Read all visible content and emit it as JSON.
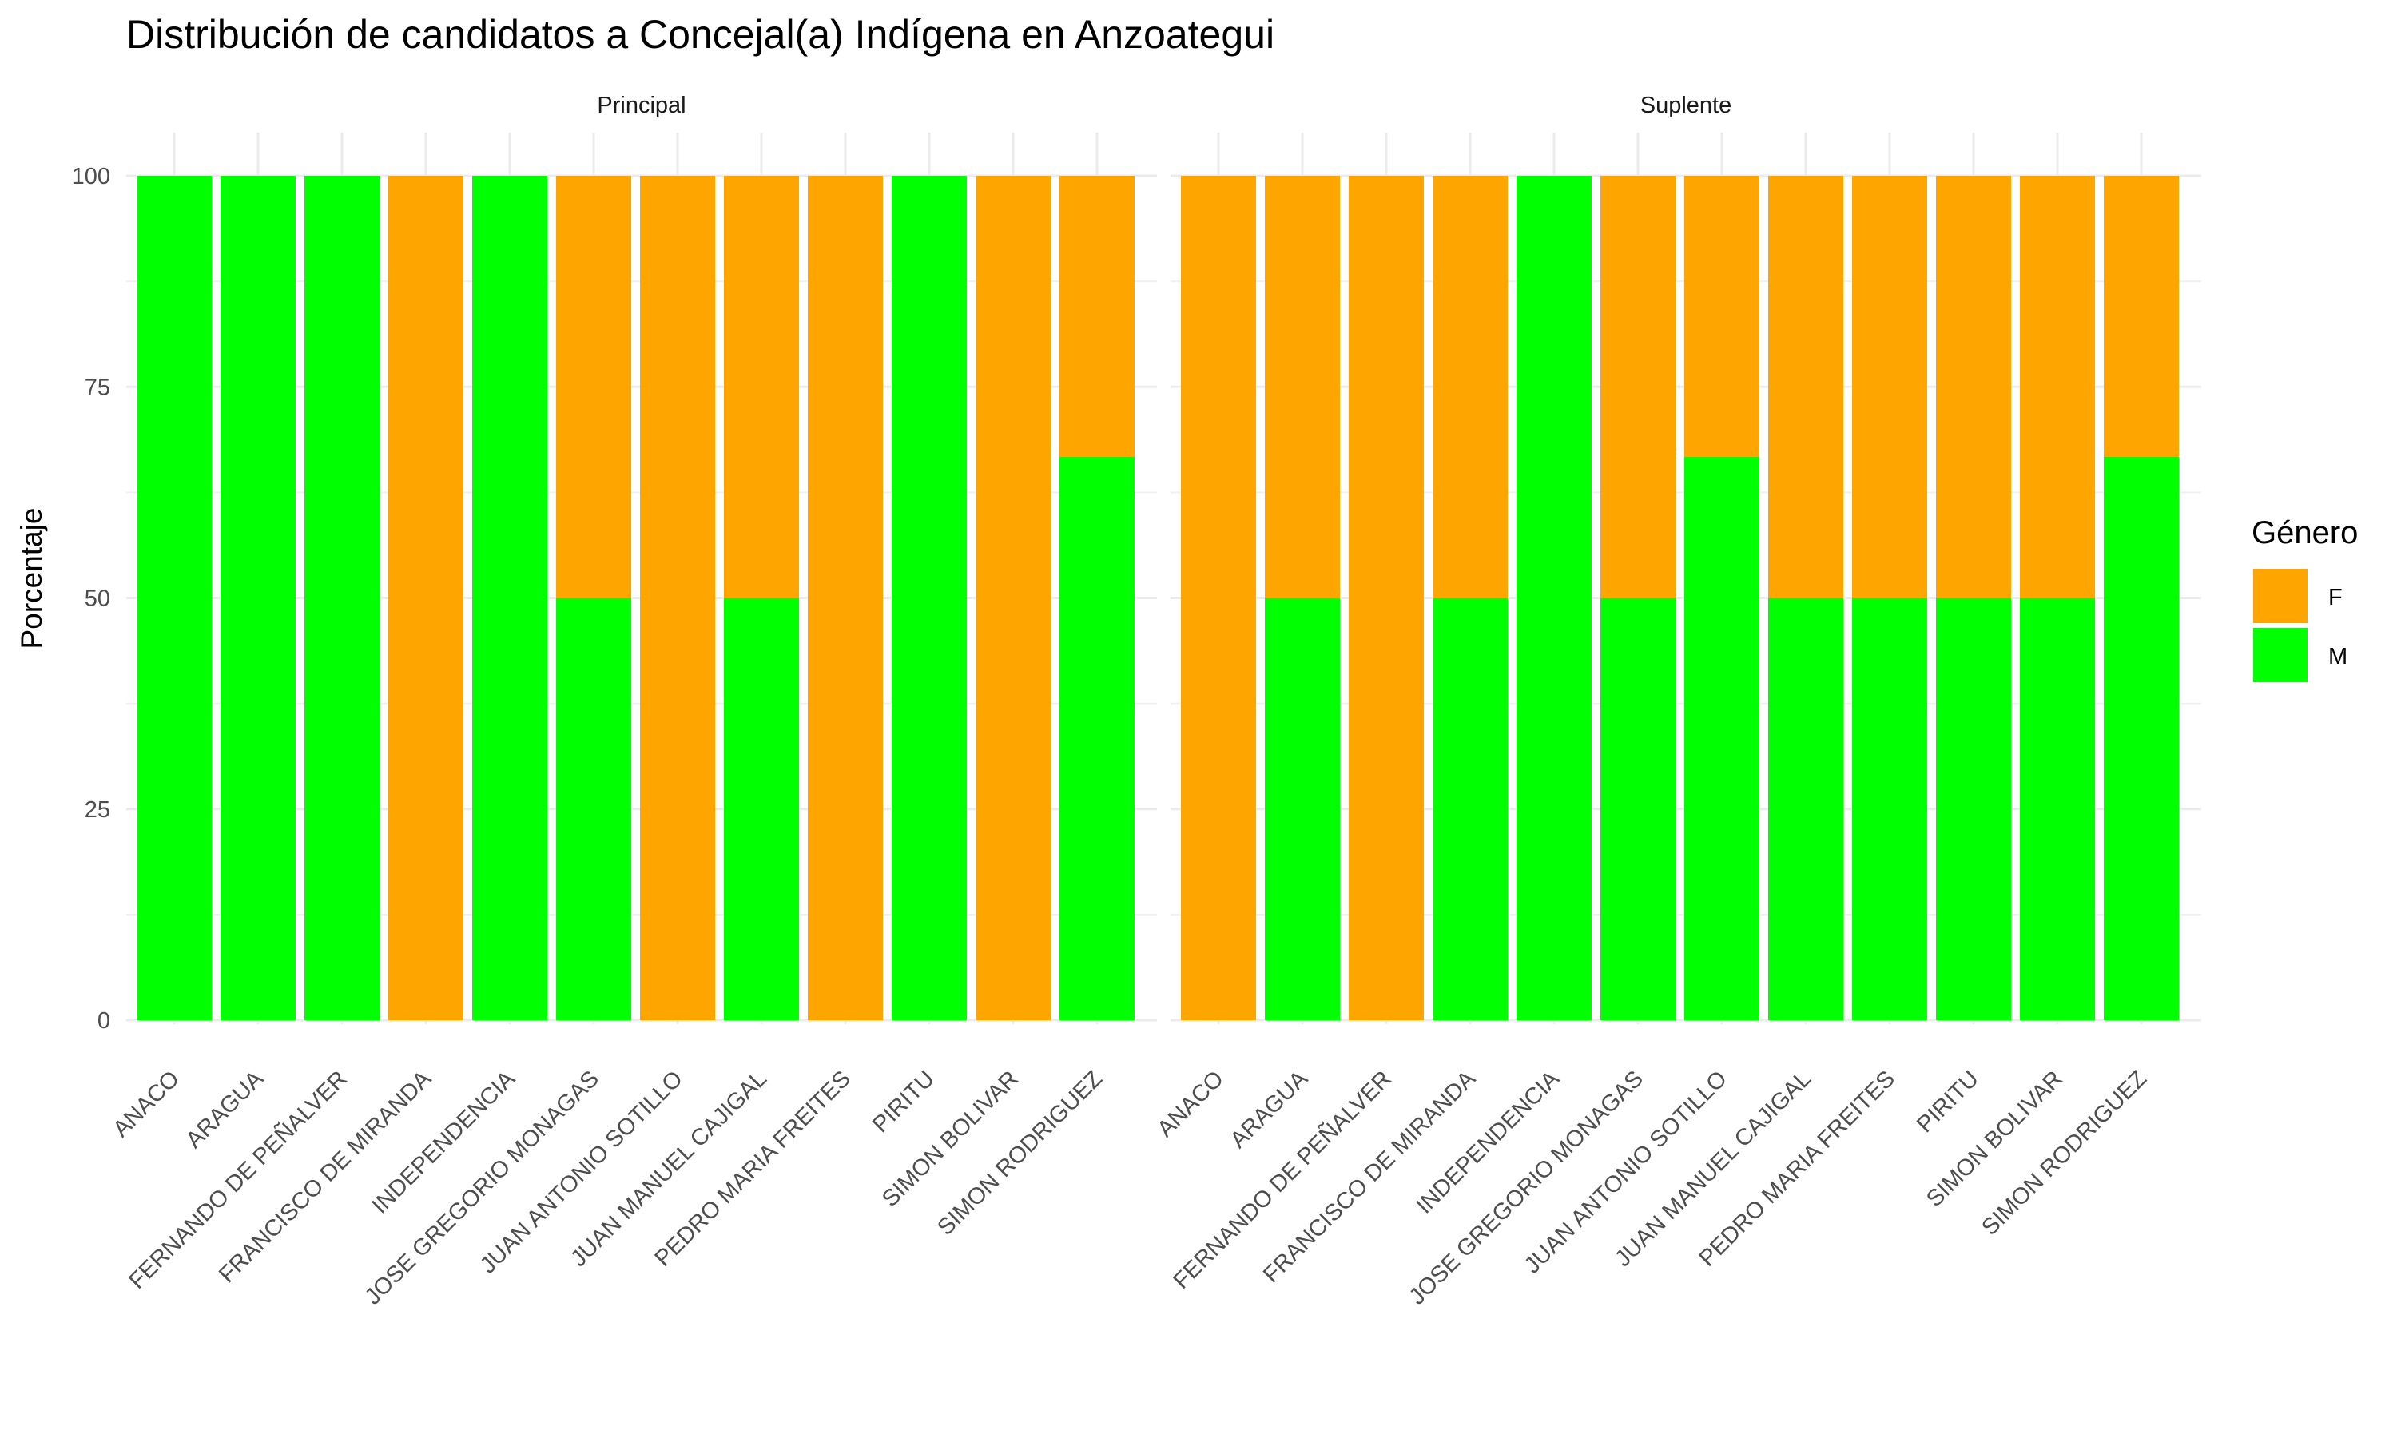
{
  "chart_data": {
    "type": "bar",
    "stacked": true,
    "title": "Distribución de candidatos a Concejal(a) Indígena en Anzoategui",
    "ylabel": "Porcentaje",
    "xlabel": "",
    "ylim": [
      0,
      100
    ],
    "yticks": [
      "0",
      "25",
      "50",
      "75",
      "100"
    ],
    "ytick_values": [
      0,
      25,
      50,
      75,
      100
    ],
    "grid": true,
    "legend": {
      "title": "Género",
      "position": "right",
      "entries": [
        {
          "label": "F",
          "color": "#FFA500"
        },
        {
          "label": "M",
          "color": "#00FF00"
        }
      ]
    },
    "categories": [
      "ANACO",
      "ARAGUA",
      "FERNANDO DE PEÑALVER",
      "FRANCISCO DE MIRANDA",
      "INDEPENDENCIA",
      "JOSE GREGORIO MONAGAS",
      "JUAN ANTONIO SOTILLO",
      "JUAN MANUEL CAJIGAL",
      "PEDRO MARIA FREITES",
      "PIRITU",
      "SIMON BOLIVAR",
      "SIMON RODRIGUEZ"
    ],
    "panels": [
      {
        "label": "Principal",
        "series": [
          {
            "name": "M",
            "values": [
              100,
              100,
              100,
              0,
              100,
              50,
              0,
              50,
              0,
              100,
              0,
              66.7
            ]
          },
          {
            "name": "F",
            "values": [
              0,
              0,
              0,
              100,
              0,
              50,
              100,
              50,
              100,
              0,
              100,
              33.3
            ]
          }
        ]
      },
      {
        "label": "Suplente",
        "series": [
          {
            "name": "M",
            "values": [
              0,
              50,
              0,
              50,
              100,
              50,
              66.7,
              50,
              50,
              50,
              50,
              66.7
            ]
          },
          {
            "name": "F",
            "values": [
              100,
              50,
              100,
              50,
              0,
              50,
              33.3,
              50,
              50,
              50,
              50,
              33.3
            ]
          }
        ]
      }
    ]
  }
}
